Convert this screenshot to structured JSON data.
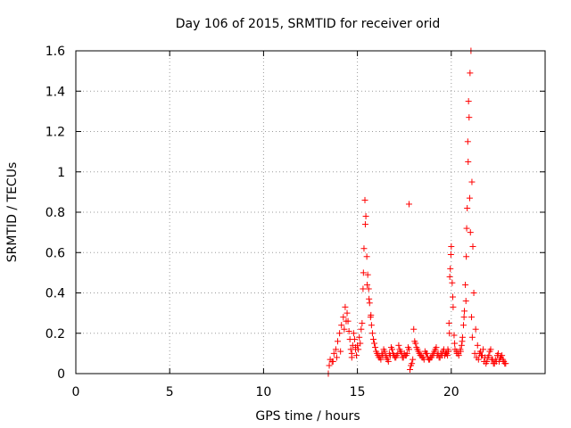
{
  "chart_data": {
    "type": "scatter",
    "title": "Day 106 of 2015, SRMTID for receiver orid",
    "xlabel": "GPS time / hours",
    "ylabel": "SRMTID / TECUs",
    "xlim": [
      0,
      25
    ],
    "ylim": [
      0,
      1.6
    ],
    "x_ticks": [
      0,
      5,
      10,
      15,
      20
    ],
    "y_ticks": [
      0,
      0.2,
      0.4,
      0.6,
      0.8,
      1.0,
      1.2,
      1.4,
      1.6
    ],
    "x_tick_labels": [
      "0",
      "5",
      "10",
      "15",
      "20"
    ],
    "y_tick_labels": [
      "0",
      "0.2",
      "0.4",
      "0.6",
      "0.8",
      "1",
      "1.2",
      "1.4",
      "1.6"
    ],
    "grid": true,
    "marker": "+",
    "series": [
      {
        "name": "SRMTID",
        "color": "#ff0000",
        "x": [
          13.45,
          13.55,
          13.65,
          13.75,
          13.85,
          13.95,
          14.05,
          14.15,
          14.25,
          14.35,
          14.45,
          14.5,
          14.55,
          14.6,
          14.65,
          14.7,
          14.75,
          14.8,
          14.85,
          14.9,
          14.95,
          15.0,
          15.1,
          15.2,
          15.25,
          15.3,
          15.35,
          15.4,
          15.45,
          15.5,
          15.55,
          15.6,
          15.65,
          15.7,
          15.75,
          15.8,
          15.9,
          16.0,
          16.1,
          16.2,
          16.3,
          16.4,
          16.5,
          16.6,
          16.7,
          16.8,
          16.9,
          17.0,
          17.1,
          17.2,
          17.3,
          17.4,
          17.5,
          17.6,
          17.7,
          17.8,
          17.9,
          18.0,
          18.1,
          18.2,
          18.3,
          18.4,
          18.5,
          18.6,
          18.7,
          18.8,
          18.9,
          19.0,
          19.1,
          19.2,
          19.3,
          19.4,
          19.5,
          19.6,
          19.7,
          19.8,
          19.85,
          19.9,
          19.95,
          20.0,
          20.05,
          20.1,
          20.15,
          20.2,
          20.3,
          20.4,
          20.5,
          20.55,
          20.6,
          20.65,
          20.7,
          20.75,
          20.8,
          20.85,
          20.9,
          20.95,
          21.0,
          21.05,
          21.1,
          21.15,
          21.2,
          21.3,
          21.4,
          21.5,
          21.6,
          21.7,
          21.8,
          21.9,
          22.0,
          22.1,
          22.2,
          22.3,
          22.4,
          22.5,
          22.6,
          22.7,
          22.8,
          22.9,
          13.5,
          13.7,
          13.9,
          14.1,
          14.3,
          14.4,
          14.7,
          14.9,
          15.05,
          15.15,
          15.32,
          15.42,
          15.52,
          15.62,
          15.72,
          15.85,
          15.95,
          16.05,
          16.15,
          16.25,
          16.35,
          16.45,
          16.55,
          16.65,
          16.75,
          16.85,
          16.95,
          17.05,
          17.15,
          17.25,
          17.35,
          17.45,
          17.55,
          17.65,
          17.75,
          17.85,
          17.95,
          18.05,
          18.15,
          18.25,
          18.35,
          18.45,
          18.55,
          18.65,
          18.75,
          18.85,
          18.95,
          19.05,
          19.15,
          19.25,
          19.35,
          19.45,
          19.55,
          19.65,
          19.75,
          19.82,
          19.88,
          19.92,
          19.98,
          20.08,
          20.18,
          20.28,
          20.38,
          20.48,
          20.58,
          20.68,
          20.78,
          20.82,
          20.88,
          20.92,
          20.98,
          21.02,
          21.08,
          21.12,
          21.25,
          21.35,
          21.45,
          21.55,
          21.65,
          21.75,
          21.85,
          21.95,
          22.05,
          22.15,
          22.25,
          22.35,
          22.45,
          22.55,
          22.65,
          22.75,
          22.85,
          17.75
        ],
        "y": [
          0.0,
          0.07,
          0.06,
          0.1,
          0.12,
          0.16,
          0.2,
          0.24,
          0.28,
          0.33,
          0.3,
          0.26,
          0.21,
          0.17,
          0.12,
          0.1,
          0.14,
          0.2,
          0.17,
          0.12,
          0.09,
          0.14,
          0.18,
          0.22,
          0.25,
          0.42,
          0.62,
          0.86,
          0.78,
          0.58,
          0.49,
          0.42,
          0.35,
          0.28,
          0.24,
          0.2,
          0.15,
          0.11,
          0.09,
          0.08,
          0.1,
          0.12,
          0.09,
          0.07,
          0.1,
          0.13,
          0.1,
          0.08,
          0.09,
          0.14,
          0.11,
          0.08,
          0.1,
          0.09,
          0.13,
          0.02,
          0.05,
          0.22,
          0.15,
          0.12,
          0.1,
          0.09,
          0.08,
          0.11,
          0.1,
          0.07,
          0.08,
          0.09,
          0.11,
          0.13,
          0.1,
          0.08,
          0.09,
          0.12,
          0.1,
          0.09,
          0.11,
          0.2,
          0.52,
          0.63,
          0.45,
          0.33,
          0.19,
          0.12,
          0.1,
          0.09,
          0.11,
          0.14,
          0.18,
          0.24,
          0.31,
          0.44,
          0.58,
          0.82,
          1.05,
          1.27,
          1.49,
          1.6,
          0.95,
          0.63,
          0.4,
          0.22,
          0.14,
          0.1,
          0.09,
          0.12,
          0.08,
          0.06,
          0.09,
          0.12,
          0.07,
          0.05,
          0.06,
          0.1,
          0.08,
          0.09,
          0.06,
          0.05,
          0.04,
          0.06,
          0.08,
          0.11,
          0.22,
          0.26,
          0.08,
          0.13,
          0.12,
          0.15,
          0.5,
          0.74,
          0.44,
          0.37,
          0.29,
          0.17,
          0.13,
          0.1,
          0.08,
          0.07,
          0.09,
          0.11,
          0.08,
          0.06,
          0.09,
          0.12,
          0.09,
          0.08,
          0.1,
          0.12,
          0.1,
          0.08,
          0.09,
          0.1,
          0.12,
          0.04,
          0.07,
          0.16,
          0.13,
          0.11,
          0.09,
          0.08,
          0.07,
          0.1,
          0.08,
          0.07,
          0.08,
          0.1,
          0.12,
          0.09,
          0.08,
          0.1,
          0.11,
          0.09,
          0.1,
          0.12,
          0.25,
          0.48,
          0.59,
          0.38,
          0.15,
          0.11,
          0.1,
          0.12,
          0.16,
          0.28,
          0.36,
          0.72,
          1.15,
          1.35,
          0.87,
          0.7,
          0.28,
          0.18,
          0.1,
          0.08,
          0.07,
          0.11,
          0.09,
          0.06,
          0.05,
          0.08,
          0.11,
          0.07,
          0.05,
          0.07,
          0.09,
          0.06,
          0.08,
          0.07,
          0.05,
          0.84
        ]
      }
    ]
  }
}
